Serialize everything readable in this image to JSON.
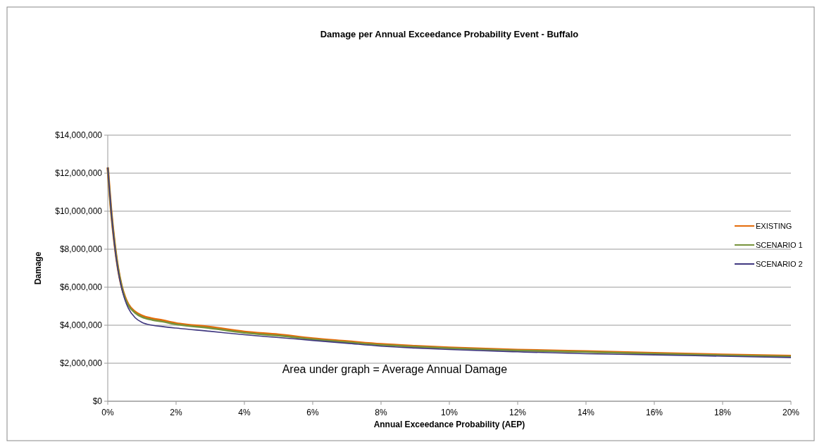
{
  "chart_data": {
    "type": "line",
    "title": "Damage per Annual Exceedance Probability Event - Buffalo",
    "xlabel": "Annual Exceedance Probability (AEP)",
    "ylabel": "Damage",
    "annotations": [
      "Area under graph = Average Annual Damage"
    ],
    "x": [
      0,
      0.1,
      0.2,
      0.3,
      0.4,
      0.5,
      0.6,
      0.8,
      1,
      1.3,
      1.6,
      2,
      3,
      4,
      5,
      6,
      7,
      8,
      9,
      10,
      12,
      14,
      16,
      18,
      20
    ],
    "series": [
      {
        "name": "EXISTING",
        "color": "#e46c0a",
        "values": [
          12300000,
          10000000,
          8300000,
          7000000,
          6100000,
          5500000,
          5100000,
          4700000,
          4500000,
          4350000,
          4250000,
          4100000,
          3900000,
          3650000,
          3500000,
          3300000,
          3150000,
          3000000,
          2900000,
          2820000,
          2700000,
          2620000,
          2530000,
          2450000,
          2380000
        ]
      },
      {
        "name": "SCENARIO 1",
        "color": "#77933c",
        "values": [
          12300000,
          10000000,
          8300000,
          7000000,
          6100000,
          5450000,
          5050000,
          4650000,
          4430000,
          4280000,
          4190000,
          4050000,
          3840000,
          3600000,
          3450000,
          3260000,
          3110000,
          2960000,
          2870000,
          2790000,
          2670000,
          2590000,
          2500000,
          2420000,
          2350000
        ]
      },
      {
        "name": "SCENARIO 2",
        "color": "#403880",
        "values": [
          12300000,
          10000000,
          8200000,
          6900000,
          6000000,
          5350000,
          4900000,
          4400000,
          4150000,
          4000000,
          3930000,
          3850000,
          3680000,
          3500000,
          3350000,
          3200000,
          3050000,
          2900000,
          2800000,
          2720000,
          2600000,
          2500000,
          2440000,
          2370000,
          2300000
        ]
      }
    ],
    "xlim": [
      0,
      20
    ],
    "xticks": [
      {
        "value": 0,
        "label": "0%"
      },
      {
        "value": 2,
        "label": "2%"
      },
      {
        "value": 4,
        "label": "4%"
      },
      {
        "value": 6,
        "label": "6%"
      },
      {
        "value": 8,
        "label": "8%"
      },
      {
        "value": 10,
        "label": "10%"
      },
      {
        "value": 12,
        "label": "12%"
      },
      {
        "value": 14,
        "label": "14%"
      },
      {
        "value": 16,
        "label": "16%"
      },
      {
        "value": 18,
        "label": "18%"
      },
      {
        "value": 20,
        "label": "20%"
      }
    ],
    "ylim": [
      0,
      14000000
    ],
    "yticks": [
      {
        "value": 0,
        "label": "$0"
      },
      {
        "value": 2000000,
        "label": "$2,000,000"
      },
      {
        "value": 4000000,
        "label": "$4,000,000"
      },
      {
        "value": 6000000,
        "label": "$6,000,000"
      },
      {
        "value": 8000000,
        "label": "$8,000,000"
      },
      {
        "value": 10000000,
        "label": "$10,000,000"
      },
      {
        "value": 12000000,
        "label": "$12,000,000"
      },
      {
        "value": 14000000,
        "label": "$14,000,000"
      }
    ],
    "grid": "y",
    "legend": "right",
    "marker": "none",
    "line_style": "solid"
  }
}
